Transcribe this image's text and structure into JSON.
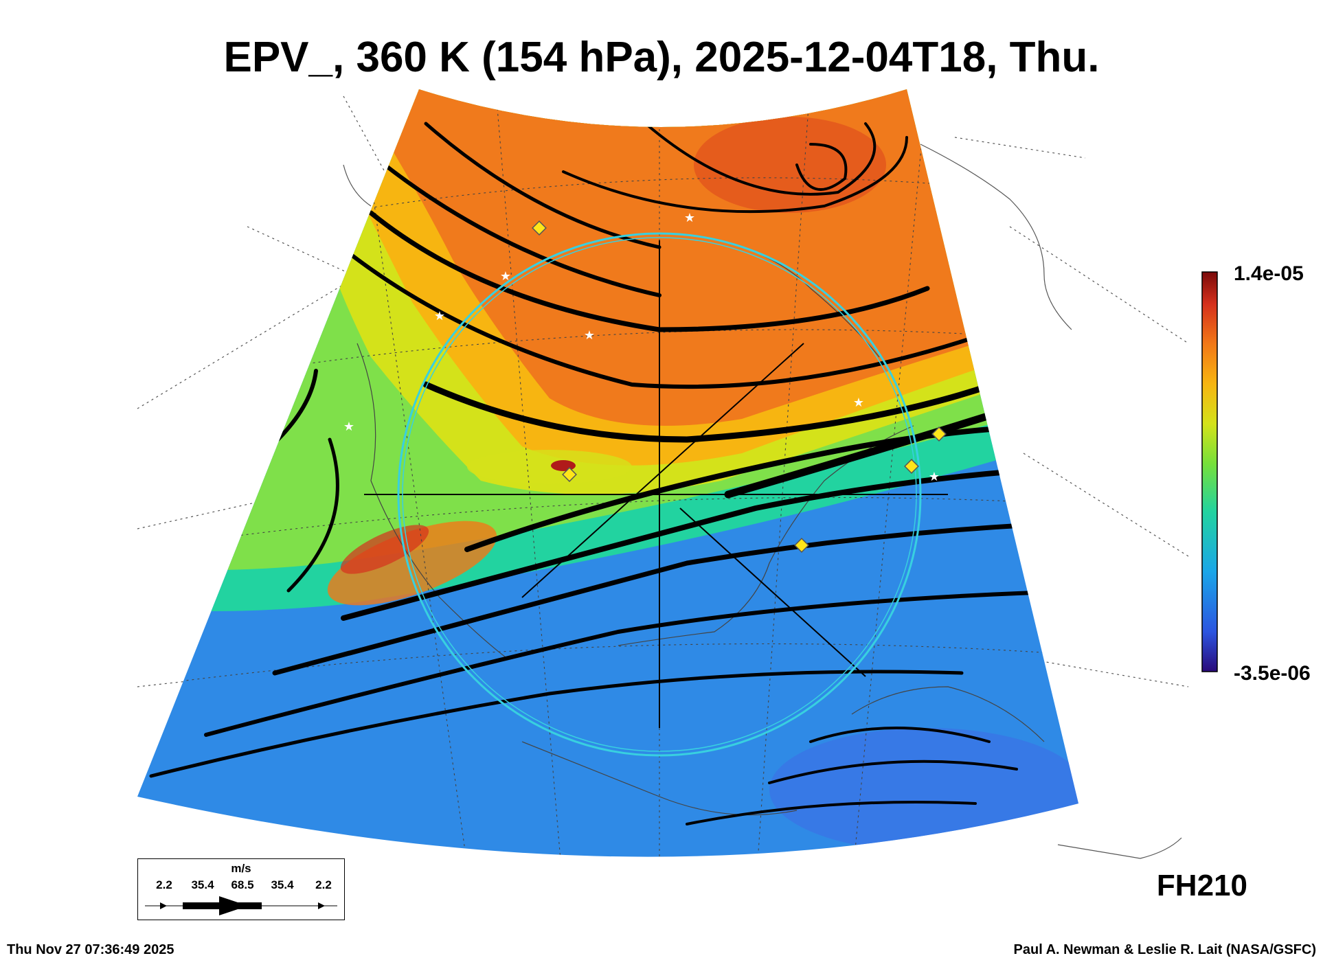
{
  "title": "EPV_, 360 K (154 hPa), 2025-12-04T18, Thu.",
  "colorbar": {
    "max_label": "1.4e-05",
    "min_label": "-3.5e-06",
    "colors": [
      "#2a0a7a",
      "#2c55e0",
      "#1aa6e8",
      "#22d3a0",
      "#76e03a",
      "#d4e21a",
      "#f7b511",
      "#f27817",
      "#d5301c",
      "#7a0a0a"
    ]
  },
  "forecast_hour": "FH210",
  "legend": {
    "units": "m/s",
    "values": [
      "2.2",
      "35.4",
      "68.5",
      "35.4",
      "2.2"
    ]
  },
  "footer": {
    "timestamp": "Thu Nov 27 07:36:49 2025",
    "credit": "Paul A. Newman & Leslie R. Lait (NASA/GSFC)"
  },
  "field_regions": {
    "high_pv": "#f07a1c",
    "mid_pv": "#7fe04a",
    "low_pv": "#2f8ae6",
    "accent_ring": "#38d0e0",
    "marker_color": "#ffe51a"
  }
}
